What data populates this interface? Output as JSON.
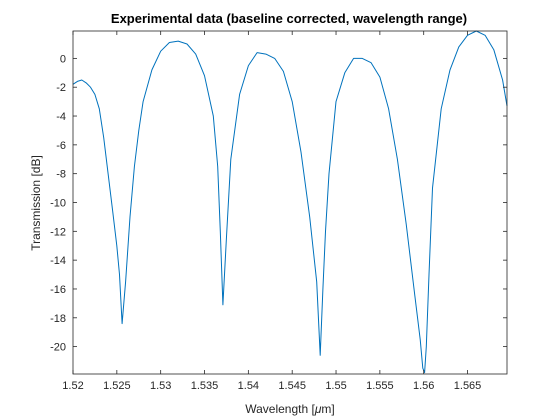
{
  "chart_data": {
    "type": "line",
    "title": "Experimental data (baseline corrected, wavelength range)",
    "xlabel": "Wavelength [",
    "xlabel_symbol": "μ",
    "xlabel_suffix": "m]",
    "ylabel": "Transmission [dB]",
    "xlim": [
      1.52,
      1.5695
    ],
    "ylim": [
      -21.9,
      1.9
    ],
    "x_ticks": [
      1.52,
      1.525,
      1.53,
      1.535,
      1.54,
      1.545,
      1.55,
      1.555,
      1.56,
      1.565
    ],
    "x_tick_labels": [
      "1.52",
      "1.525",
      "1.53",
      "1.535",
      "1.54",
      "1.545",
      "1.55",
      "1.555",
      "1.56",
      "1.565"
    ],
    "y_ticks": [
      0,
      -2,
      -4,
      -6,
      -8,
      -10,
      -12,
      -14,
      -16,
      -18,
      -20
    ],
    "y_tick_labels": [
      "0",
      "-2",
      "-4",
      "-6",
      "-8",
      "-10",
      "-12",
      "-14",
      "-16",
      "-18",
      "-20"
    ],
    "grid": false,
    "box": true,
    "series": [
      {
        "color": "#0072BD",
        "x": [
          1.52,
          1.5205,
          1.521,
          1.5215,
          1.522,
          1.5225,
          1.523,
          1.5235,
          1.524,
          1.5245,
          1.525,
          1.5253,
          1.5256,
          1.526,
          1.5265,
          1.527,
          1.5275,
          1.528,
          1.529,
          1.53,
          1.531,
          1.532,
          1.533,
          1.534,
          1.535,
          1.536,
          1.5365,
          1.5368,
          1.5371,
          1.5375,
          1.538,
          1.539,
          1.54,
          1.541,
          1.542,
          1.543,
          1.544,
          1.545,
          1.546,
          1.547,
          1.5478,
          1.5482,
          1.5485,
          1.5488,
          1.5492,
          1.55,
          1.551,
          1.552,
          1.553,
          1.554,
          1.555,
          1.556,
          1.557,
          1.558,
          1.559,
          1.5596,
          1.5599,
          1.5601,
          1.5603,
          1.5606,
          1.561,
          1.562,
          1.563,
          1.564,
          1.565,
          1.566,
          1.567,
          1.568,
          1.569,
          1.5695
        ],
        "y": [
          -1.8,
          -1.6,
          -1.5,
          -1.7,
          -2.0,
          -2.5,
          -3.5,
          -5.5,
          -8.0,
          -10.5,
          -13.0,
          -15.0,
          -18.4,
          -15.5,
          -11.0,
          -7.5,
          -5.0,
          -3.0,
          -0.8,
          0.5,
          1.1,
          1.2,
          1.0,
          0.3,
          -1.2,
          -4.0,
          -7.5,
          -12.0,
          -17.1,
          -12.5,
          -7.0,
          -2.5,
          -0.5,
          0.4,
          0.3,
          0.0,
          -0.9,
          -3.0,
          -6.5,
          -11.0,
          -15.5,
          -20.6,
          -16.0,
          -12.0,
          -8.0,
          -3.0,
          -1.0,
          0.0,
          0.0,
          -0.3,
          -1.3,
          -3.5,
          -7.0,
          -11.5,
          -16.5,
          -19.5,
          -21.5,
          -21.8,
          -20.0,
          -15.0,
          -9.0,
          -3.5,
          -0.8,
          0.8,
          1.6,
          1.9,
          1.6,
          0.6,
          -1.5,
          -3.3
        ]
      }
    ]
  }
}
